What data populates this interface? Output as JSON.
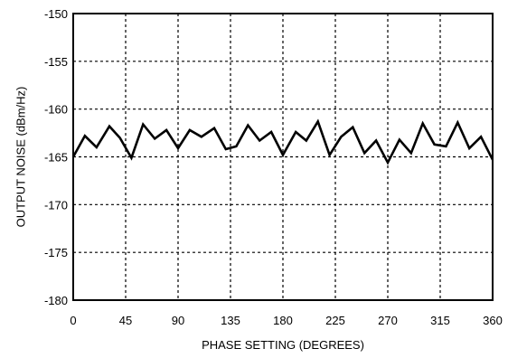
{
  "chart_data": {
    "type": "line",
    "title": "",
    "xlabel": "PHASE SETTING (DEGREES)",
    "ylabel": "OUTPUT NOISE (dBm/Hz)",
    "xlim": [
      0,
      360
    ],
    "ylim": [
      -180,
      -150
    ],
    "xticks": [
      0,
      45,
      90,
      135,
      180,
      225,
      270,
      315,
      360
    ],
    "yticks": [
      -150,
      -155,
      -160,
      -165,
      -170,
      -175,
      -180
    ],
    "grid": "dotted",
    "series": [
      {
        "x": [
          0,
          10,
          20,
          31,
          40,
          50,
          60,
          70,
          80,
          90,
          100,
          110,
          121,
          131,
          140,
          150,
          160,
          170,
          180,
          191,
          200,
          210,
          220,
          230,
          240,
          250,
          260,
          270,
          280,
          290,
          300,
          310,
          320,
          330,
          340,
          350,
          360
        ],
        "values": [
          -165.0,
          -162.8,
          -164.0,
          -161.8,
          -163.0,
          -165.1,
          -161.6,
          -163.1,
          -162.2,
          -164.1,
          -162.2,
          -162.9,
          -162.0,
          -164.2,
          -163.9,
          -161.7,
          -163.3,
          -162.4,
          -164.8,
          -162.4,
          -163.3,
          -161.3,
          -164.8,
          -162.9,
          -161.9,
          -164.6,
          -163.3,
          -165.6,
          -163.2,
          -164.6,
          -161.5,
          -163.7,
          -163.9,
          -161.4,
          -164.1,
          -162.9,
          -165.3
        ]
      }
    ]
  }
}
